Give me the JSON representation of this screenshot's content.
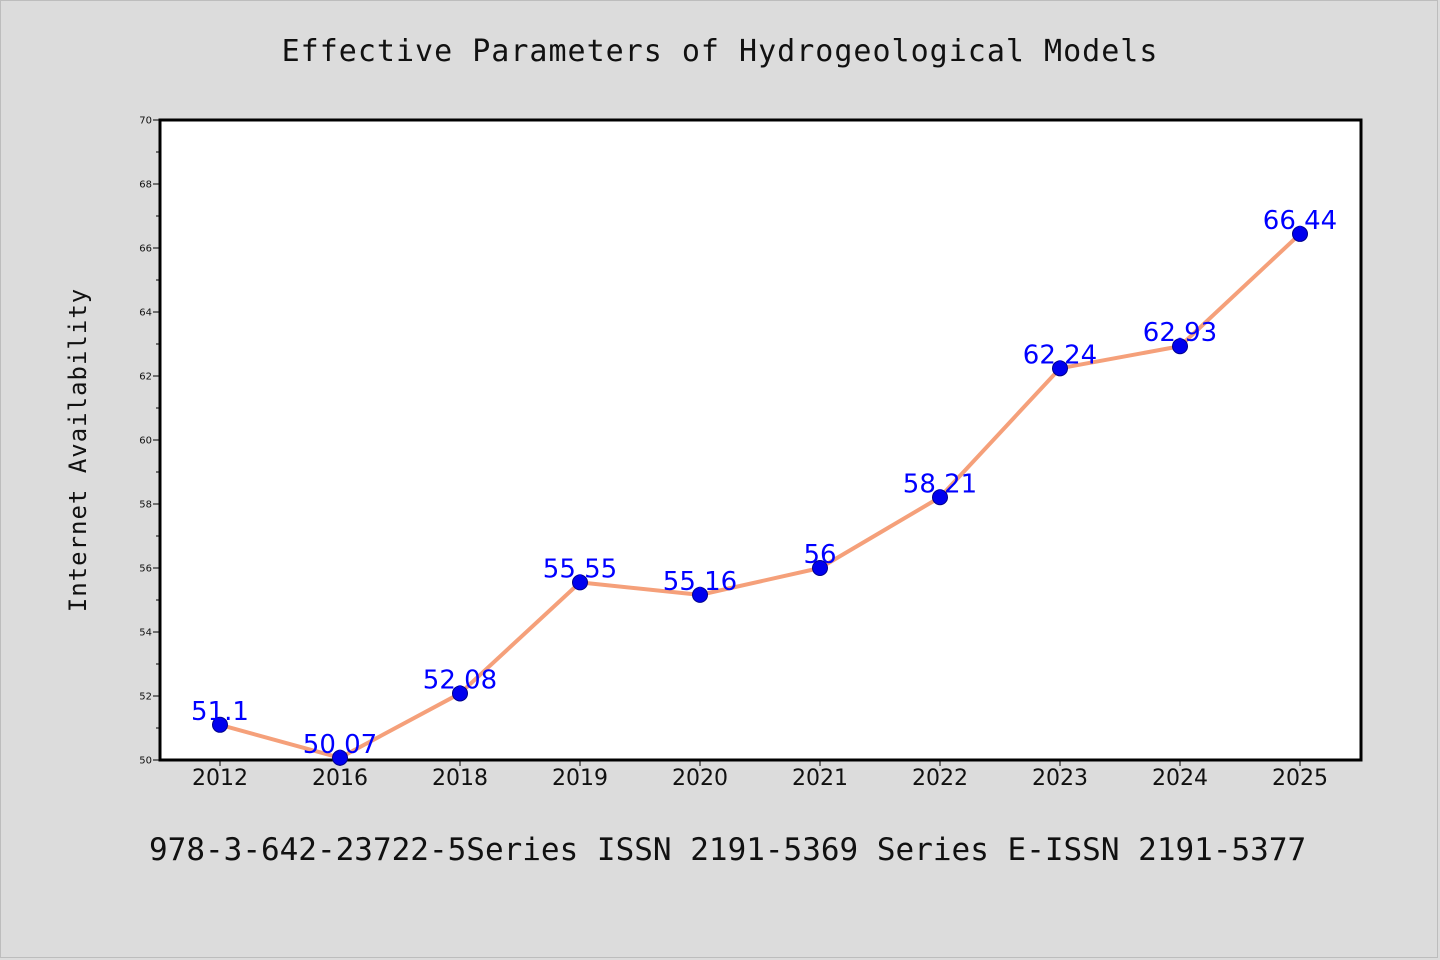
{
  "chart_data": {
    "type": "line",
    "title": "Effective Parameters of Hydrogeological Models",
    "xlabel": "",
    "ylabel": "Internet Availability",
    "categories": [
      "2012",
      "2016",
      "2018",
      "2019",
      "2020",
      "2021",
      "2022",
      "2023",
      "2024",
      "2025"
    ],
    "series": [
      {
        "values": [
          51.1,
          50.07,
          52.08,
          55.55,
          55.16,
          56,
          58.21,
          62.24,
          62.93,
          66.44
        ],
        "labels": [
          "51.1",
          "50.07",
          "52.08",
          "55.55",
          "55.16",
          "56",
          "58.21",
          "62.24",
          "62.93",
          "66.44"
        ],
        "line_color": "#f5a07a",
        "marker_color": "#0000ee"
      }
    ],
    "ylim": [
      50,
      70
    ],
    "yticks": [
      "50",
      "52",
      "54",
      "56",
      "58",
      "60",
      "62",
      "64",
      "66",
      "68",
      "70"
    ],
    "data_label_color": "#0000ff",
    "grid": false,
    "legend": "none"
  },
  "footer": "978-3-642-23722-5Series ISSN 2191-5369 Series E-ISSN 2191-5377"
}
